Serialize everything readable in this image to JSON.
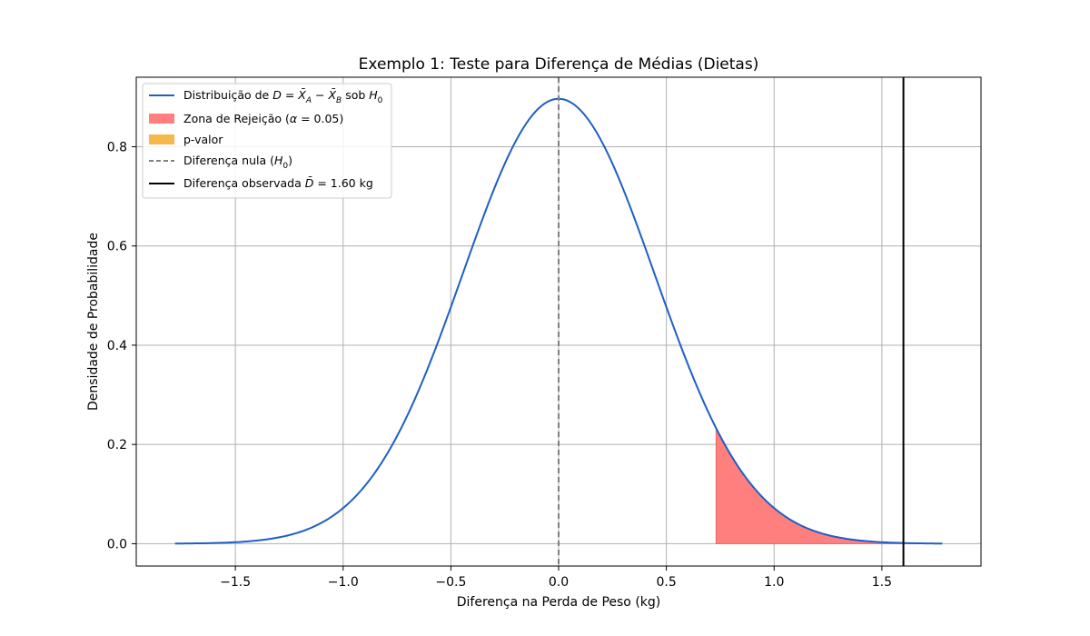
{
  "chart_data": {
    "type": "line",
    "title": "Exemplo 1: Teste para Diferença de Médias (Dietas)",
    "xlabel": "Diferença na Perda de Peso (kg)",
    "ylabel": "Densidade de Probabilidade",
    "xlim": [
      -1.96,
      1.96
    ],
    "ylim": [
      -0.045,
      0.94
    ],
    "xticks": [
      -1.5,
      -1.0,
      -0.5,
      0.0,
      0.5,
      1.0,
      1.5
    ],
    "xtick_labels": [
      "−1.5",
      "−1.0",
      "−0.5",
      "0.0",
      "0.5",
      "1.0",
      "1.5"
    ],
    "yticks": [
      0.0,
      0.2,
      0.4,
      0.6,
      0.8
    ],
    "ytick_labels": [
      "0.0",
      "0.2",
      "0.4",
      "0.6",
      "0.8"
    ],
    "grid": true,
    "legend_position": "top-left",
    "distribution": {
      "mean": 0.0,
      "sd": 0.445,
      "x_range": [
        -1.78,
        1.78
      ]
    },
    "rejection_region": {
      "from": 0.73,
      "to": 1.78
    },
    "p_value_region": {
      "from": 1.6,
      "to": 1.78
    },
    "null_difference": 0.0,
    "observed_difference": 1.6,
    "series": [
      {
        "name": "Distribuição de D = X̄_A − X̄_B sob H_0",
        "color": "#1f5fc4",
        "style": "line"
      },
      {
        "name": "Zona de Rejeição (α = 0.05)",
        "color": "#ff7f7f",
        "style": "fill"
      },
      {
        "name": "p-valor",
        "color": "#f7b84b",
        "style": "fill"
      },
      {
        "name": "Diferença nula (H_0)",
        "color": "#808080",
        "style": "dashed"
      },
      {
        "name": "Diferença observada D̄ = 1.60 kg",
        "color": "#000000",
        "style": "vline"
      }
    ]
  }
}
